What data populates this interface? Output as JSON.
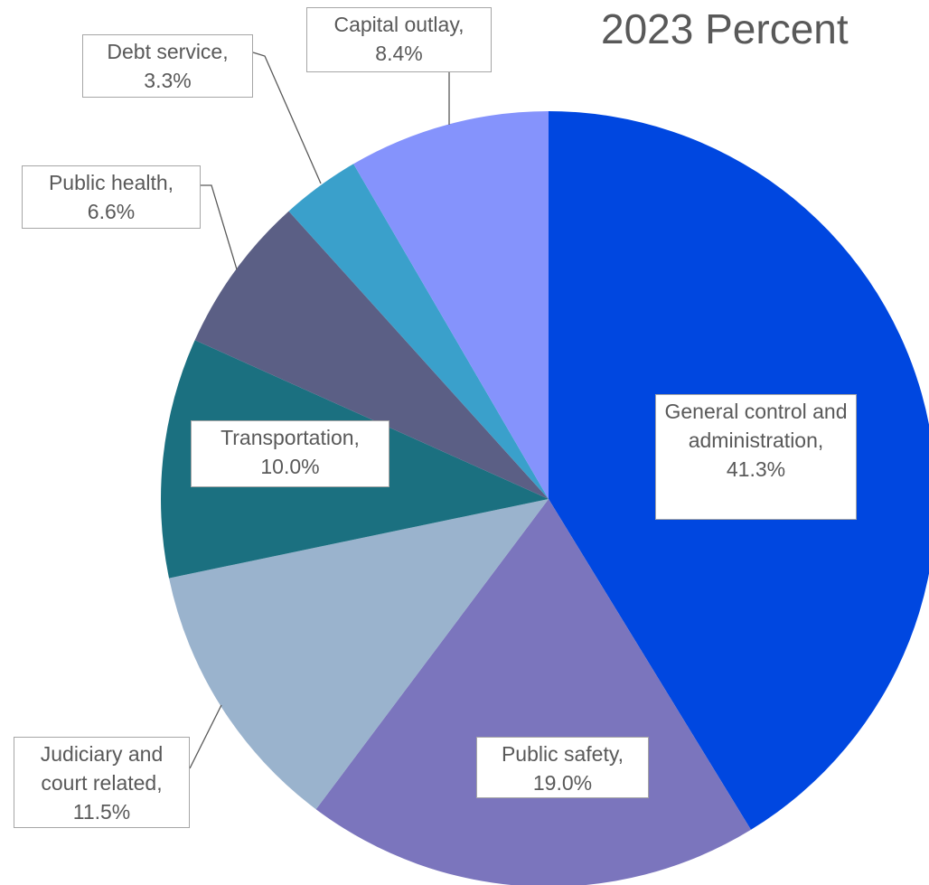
{
  "chart_data": {
    "type": "pie",
    "title": "2023 Percent",
    "categories": [
      "General control and administration,",
      "Public safety,",
      "Judiciary and court related,",
      "Transportation,",
      "Public health,",
      "Debt service,",
      "Capital outlay,"
    ],
    "values": [
      41.3,
      19.0,
      11.5,
      10.0,
      6.6,
      3.3,
      8.4
    ],
    "value_labels": [
      "41.3%",
      "19.0%",
      "11.5%",
      "10.0%",
      "6.6%",
      "3.3%",
      "8.4%"
    ],
    "colors": [
      "#0047e0",
      "#7b75bd",
      "#9ab3cd",
      "#1b7080",
      "#5b5f85",
      "#3aa0cb",
      "#8593fc"
    ]
  }
}
